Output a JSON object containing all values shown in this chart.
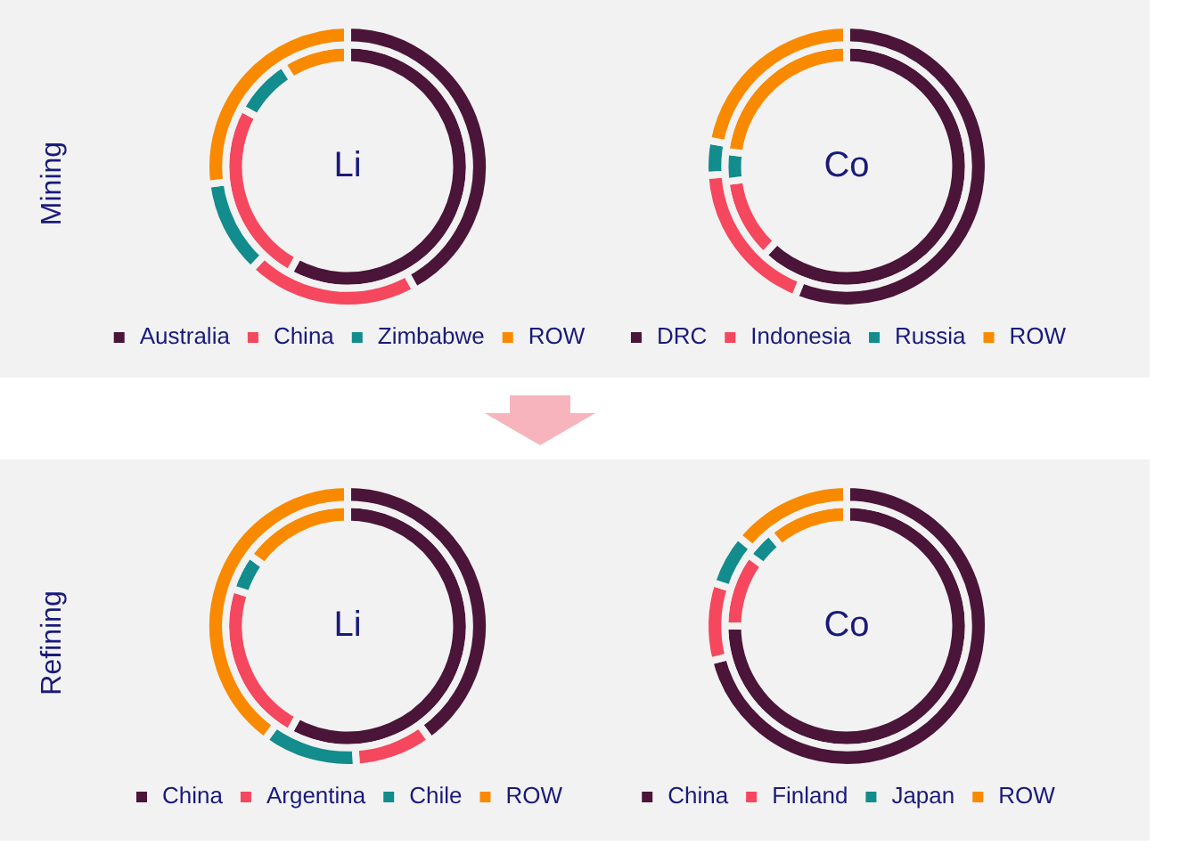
{
  "chart_data": [
    {
      "type": "donut",
      "title": "Li",
      "annotations": [
        "Mining"
      ],
      "categories": [
        "Australia",
        "China",
        "Zimbabwe",
        "ROW"
      ],
      "colors": [
        "#4a1538",
        "#f5475e",
        "#128c8c",
        "#f98a00"
      ],
      "legend": "bottom",
      "series": [
        {
          "values": [
            58,
            25,
            8,
            9
          ]
        },
        {
          "values": [
            42,
            20,
            11,
            27
          ]
        }
      ]
    },
    {
      "type": "donut",
      "title": "Co",
      "categories": [
        "DRC",
        "Indonesia",
        "Russia",
        "ROW"
      ],
      "colors": [
        "#4a1538",
        "#f5475e",
        "#128c8c",
        "#f98a00"
      ],
      "legend": "bottom",
      "series": [
        {
          "values": [
            62,
            11,
            4,
            23
          ]
        },
        {
          "values": [
            56,
            18,
            4,
            22
          ]
        }
      ]
    },
    {
      "type": "donut",
      "title": "Li",
      "annotations": [
        "Refining"
      ],
      "categories": [
        "China",
        "Argentina",
        "Chile",
        "ROW"
      ],
      "colors": [
        "#4a1538",
        "#f5475e",
        "#128c8c",
        "#f98a00"
      ],
      "legend": "bottom",
      "series": [
        {
          "values": [
            58,
            22,
            5,
            15
          ]
        },
        {
          "values": [
            40,
            9,
            11,
            40
          ]
        }
      ]
    },
    {
      "type": "donut",
      "title": "Co",
      "categories": [
        "China",
        "Finland",
        "Japan",
        "ROW"
      ],
      "colors": [
        "#4a1538",
        "#f5475e",
        "#128c8c",
        "#f98a00"
      ],
      "legend": "bottom",
      "series": [
        {
          "values": [
            75,
            10,
            4,
            11
          ]
        },
        {
          "values": [
            71,
            9,
            6,
            14
          ]
        }
      ]
    }
  ]
}
